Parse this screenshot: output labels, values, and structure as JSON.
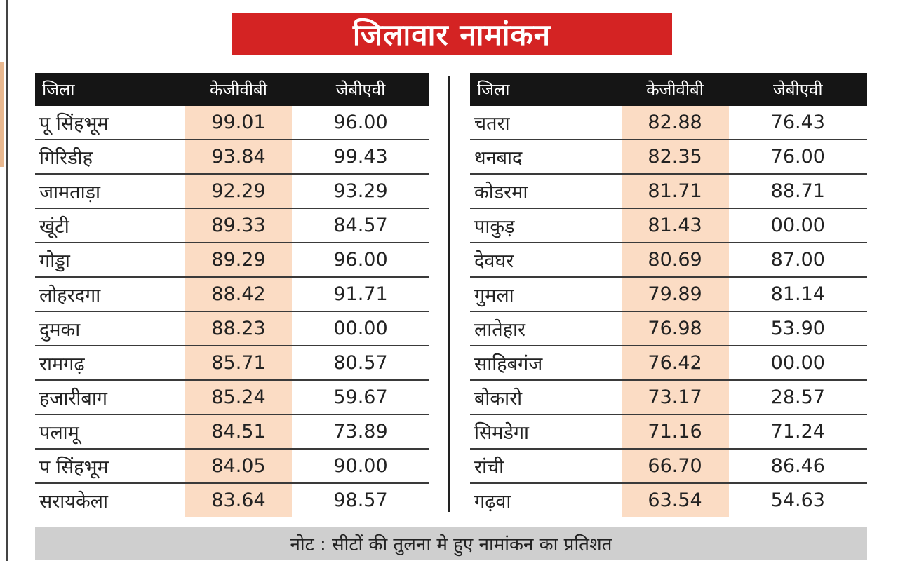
{
  "title": "जिलावार नामांकन",
  "headers": {
    "district": "जिला",
    "kgbv": "केजीवीबी",
    "jbav": "जेबीएवी"
  },
  "left_rows": [
    {
      "district": "पू सिंहभूम",
      "kgbv": "99.01",
      "jbav": "96.00"
    },
    {
      "district": "गिरिडीह",
      "kgbv": "93.84",
      "jbav": "99.43"
    },
    {
      "district": "जामताड़ा",
      "kgbv": "92.29",
      "jbav": "93.29"
    },
    {
      "district": "खूंटी",
      "kgbv": "89.33",
      "jbav": "84.57"
    },
    {
      "district": "गोड्डा",
      "kgbv": "89.29",
      "jbav": "96.00"
    },
    {
      "district": "लोहरदगा",
      "kgbv": "88.42",
      "jbav": "91.71"
    },
    {
      "district": "दुमका",
      "kgbv": "88.23",
      "jbav": "00.00"
    },
    {
      "district": "रामगढ़",
      "kgbv": "85.71",
      "jbav": "80.57"
    },
    {
      "district": "हजारीबाग",
      "kgbv": "85.24",
      "jbav": "59.67"
    },
    {
      "district": "पलामू",
      "kgbv": "84.51",
      "jbav": "73.89"
    },
    {
      "district": "प सिंहभूम",
      "kgbv": "84.05",
      "jbav": "90.00"
    },
    {
      "district": "सरायकेला",
      "kgbv": "83.64",
      "jbav": "98.57"
    }
  ],
  "right_rows": [
    {
      "district": "चतरा",
      "kgbv": "82.88",
      "jbav": "76.43"
    },
    {
      "district": "धनबाद",
      "kgbv": "82.35",
      "jbav": "76.00"
    },
    {
      "district": "कोडरमा",
      "kgbv": "81.71",
      "jbav": "88.71"
    },
    {
      "district": "पाकुड़",
      "kgbv": "81.43",
      "jbav": "00.00"
    },
    {
      "district": "देवघर",
      "kgbv": "80.69",
      "jbav": "87.00"
    },
    {
      "district": "गुमला",
      "kgbv": "79.89",
      "jbav": "81.14"
    },
    {
      "district": "लातेहार",
      "kgbv": "76.98",
      "jbav": "53.90"
    },
    {
      "district": "साहिबगंज",
      "kgbv": "76.42",
      "jbav": "00.00"
    },
    {
      "district": "बोकारो",
      "kgbv": "73.17",
      "jbav": "28.57"
    },
    {
      "district": "सिमडेगा",
      "kgbv": "71.16",
      "jbav": "71.24"
    },
    {
      "district": "रांची",
      "kgbv": "66.70",
      "jbav": "86.46"
    },
    {
      "district": "गढ़वा",
      "kgbv": "63.54",
      "jbav": "54.63"
    }
  ],
  "note": "नोट : सीटों की तुलना मे हुए नामांकन का प्रतिशत",
  "colors": {
    "title_bg": "#d42323",
    "header_bg": "#151515",
    "highlight": "#fbdcc4",
    "note_bg": "#cfcfcf"
  }
}
